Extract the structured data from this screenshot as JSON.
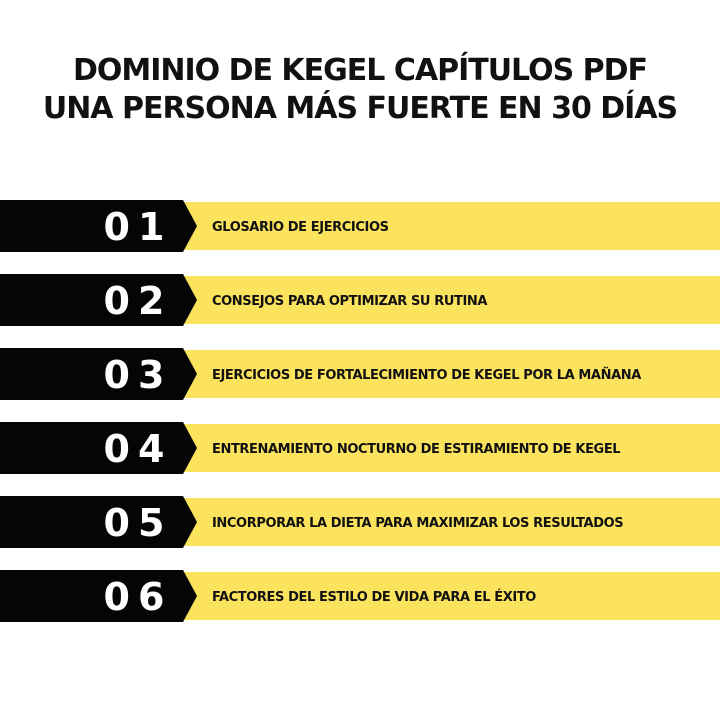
{
  "header": {
    "title_lines": [
      "DOMINIO DE KEGEL CAPÍTULOS PDF",
      "UNA PERSONA MÁS FUERTE EN 30 DÍAS"
    ]
  },
  "chapters": [
    {
      "number": "01",
      "label": "GLOSARIO DE EJERCICIOS"
    },
    {
      "number": "02",
      "label": "CONSEJOS PARA OPTIMIZAR SU RUTINA"
    },
    {
      "number": "03",
      "label": "EJERCICIOS DE FORTALECIMIENTO DE KEGEL POR LA MAÑANA"
    },
    {
      "number": "04",
      "label": "ENTRENAMIENTO NOCTURNO DE ESTIRAMIENTO DE KEGEL"
    },
    {
      "number": "05",
      "label": "INCORPORAR LA DIETA PARA MAXIMIZAR LOS RESULTADOS"
    },
    {
      "number": "06",
      "label": "FACTORES DEL ESTILO DE VIDA PARA EL ÉXITO"
    }
  ]
}
